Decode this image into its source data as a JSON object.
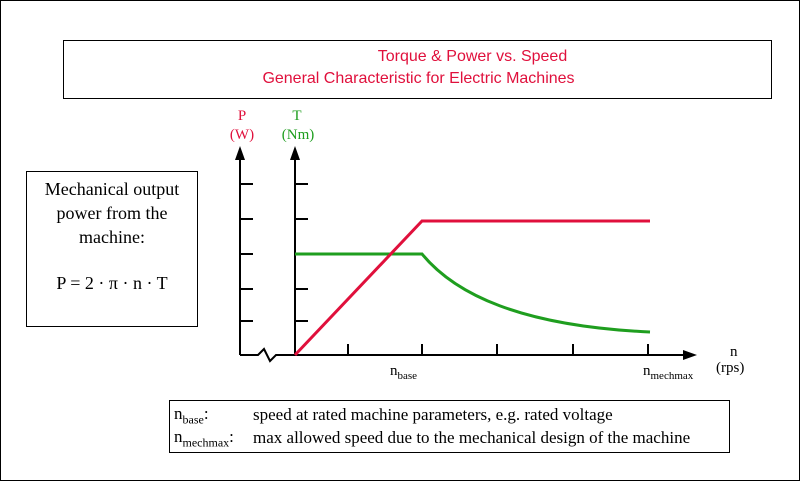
{
  "title": {
    "line1": "Torque & Power vs. Speed",
    "line2": "General Characteristic for Electric Machines"
  },
  "formula_box": {
    "line1": "Mechanical output",
    "line2": "power from the",
    "line3": "machine:",
    "formula": "P = 2 · π · n · T"
  },
  "axes": {
    "p_symbol": "P",
    "p_unit": "(W)",
    "t_symbol": "T",
    "t_unit": "(Nm)",
    "x_symbol": "n",
    "x_unit": "(rps)",
    "n_base_main": "n",
    "n_base_sub": "base",
    "n_mechmax_main": "n",
    "n_mechmax_sub": "mechmax"
  },
  "legend": {
    "row1_main": "n",
    "row1_sub": "base",
    "row1_colon": ":",
    "row1_desc": "speed at rated machine parameters, e.g. rated voltage",
    "row2_main": "n",
    "row2_sub": "mechmax",
    "row2_colon": ":",
    "row2_desc": "max allowed speed due to the mechanical design of the machine"
  },
  "colors": {
    "power": "#e0103c",
    "torque": "#1f9e1f"
  },
  "curves": {
    "power": "rises linearly from zero to n_base, then constant to n_mechmax",
    "torque": "constant from zero to n_base, then decreasing to n_mechmax"
  }
}
